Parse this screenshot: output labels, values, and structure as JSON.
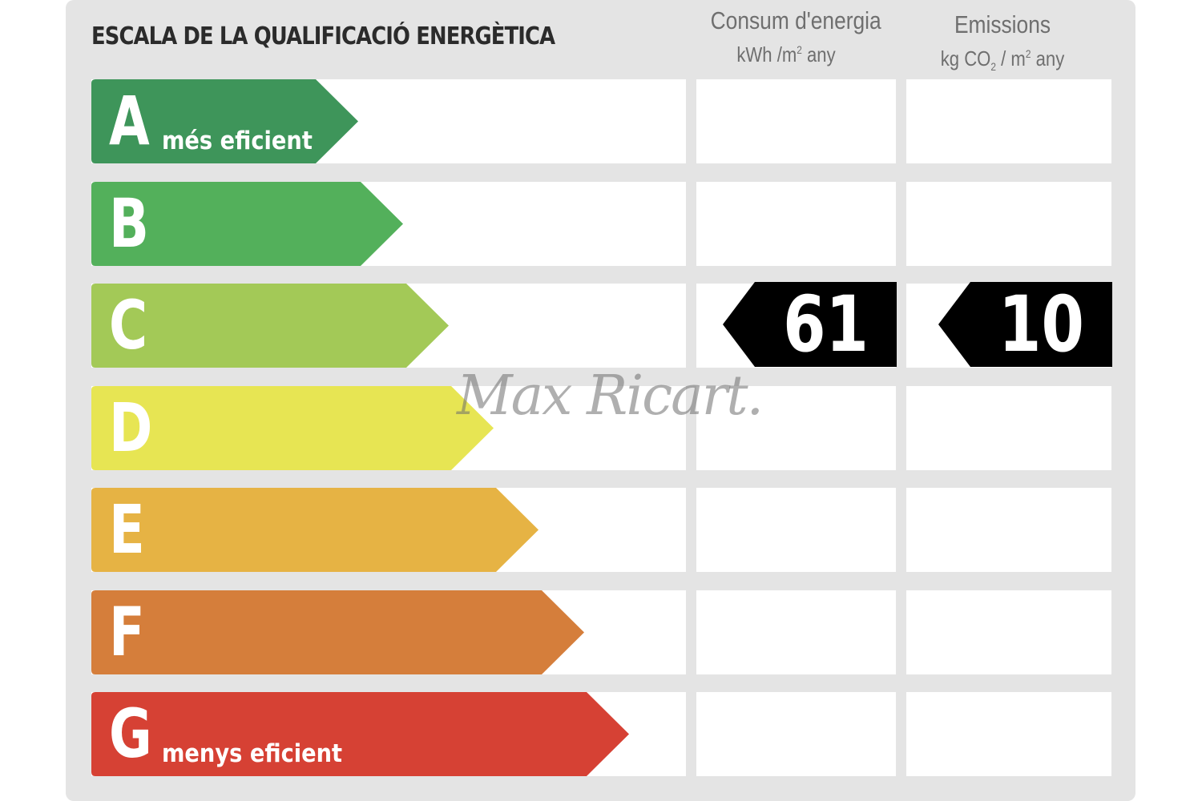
{
  "title": "ESCALA DE LA QUALIFICACIÓ ENERGÈTICA",
  "columns": {
    "energy": {
      "label": "Consum d'energia",
      "unit_pre": "kWh /m",
      "unit_sup": "2",
      "unit_post": " any"
    },
    "emissions": {
      "label": "Emissions",
      "unit_a": "kg CO",
      "unit_sub": "2",
      "unit_b": " / m",
      "unit_sup": "2",
      "unit_c": " any"
    }
  },
  "rating_scale": [
    {
      "letter": "A",
      "description": "més eficient",
      "color": "#3e955a"
    },
    {
      "letter": "B",
      "description": "",
      "color": "#53b05b"
    },
    {
      "letter": "C",
      "description": "",
      "color": "#a3c957"
    },
    {
      "letter": "D",
      "description": "",
      "color": "#e7e553"
    },
    {
      "letter": "E",
      "description": "",
      "color": "#e6b344"
    },
    {
      "letter": "F",
      "description": "",
      "color": "#d57e3b"
    },
    {
      "letter": "G",
      "description": "menys eficient",
      "color": "#d64134"
    }
  ],
  "result": {
    "rating_row": "C",
    "energy_value": "61",
    "emissions_value": "10",
    "marker_color": "#000000"
  },
  "watermark": "Max Ricart."
}
